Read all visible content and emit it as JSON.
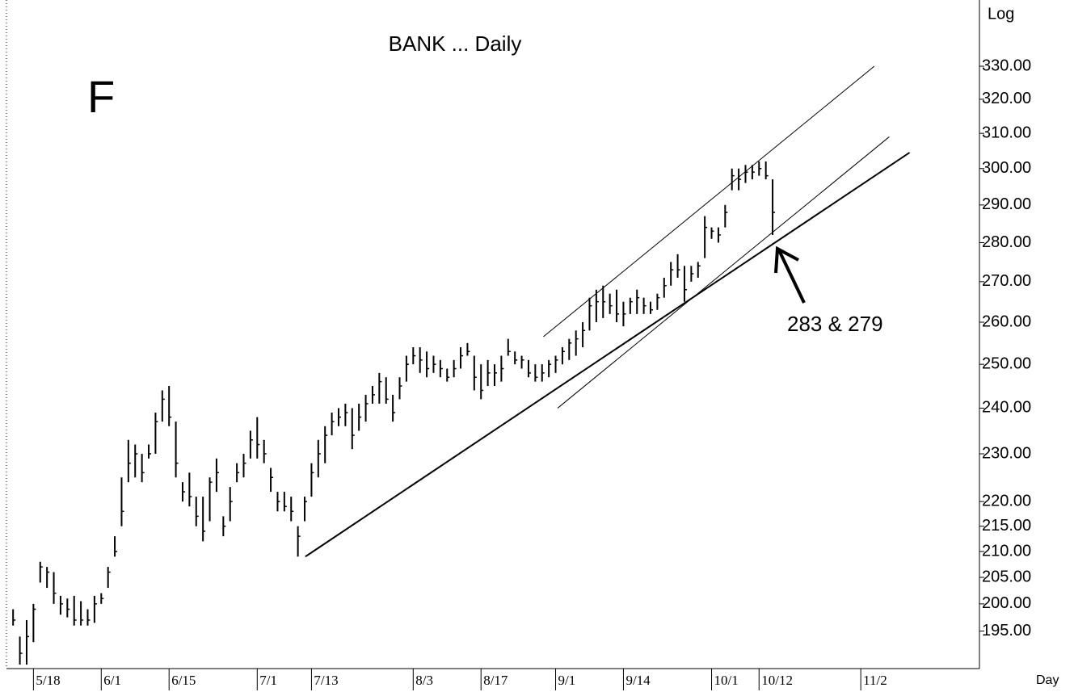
{
  "chart_data": {
    "type": "ohlc",
    "title": "BANK ... Daily",
    "annotations": [
      "F",
      "283 & 279"
    ],
    "y_axis_label": "Log",
    "x_axis_label": "Day",
    "log": true,
    "color": "#000000",
    "ylim": [
      188.3,
      351
    ],
    "yticks": [
      {
        "value": 195,
        "label": "195.00"
      },
      {
        "value": 200,
        "label": "200.00"
      },
      {
        "value": 205,
        "label": "205.00"
      },
      {
        "value": 210,
        "label": "210.00"
      },
      {
        "value": 215,
        "label": "215.00"
      },
      {
        "value": 220,
        "label": "220.00"
      },
      {
        "value": 230,
        "label": "230.00"
      },
      {
        "value": 240,
        "label": "240.00"
      },
      {
        "value": 250,
        "label": "250.00"
      },
      {
        "value": 260,
        "label": "260.00"
      },
      {
        "value": 270,
        "label": "270.00"
      },
      {
        "value": 280,
        "label": "280.00"
      },
      {
        "value": 290,
        "label": "290.00"
      },
      {
        "value": 300,
        "label": "300.00"
      },
      {
        "value": 310,
        "label": "310.00"
      },
      {
        "value": 320,
        "label": "320.00"
      },
      {
        "value": 330,
        "label": "330.00"
      }
    ],
    "categories": [
      null,
      null,
      null,
      "5/18",
      null,
      null,
      null,
      null,
      null,
      null,
      null,
      null,
      null,
      "6/1",
      null,
      null,
      null,
      null,
      null,
      null,
      null,
      null,
      null,
      "6/15",
      null,
      null,
      null,
      null,
      null,
      null,
      null,
      null,
      null,
      null,
      null,
      null,
      "7/1",
      null,
      null,
      null,
      null,
      null,
      null,
      null,
      "7/13",
      null,
      null,
      null,
      null,
      null,
      null,
      null,
      null,
      null,
      null,
      null,
      null,
      null,
      null,
      "8/3",
      null,
      null,
      null,
      null,
      null,
      null,
      null,
      null,
      null,
      "8/17",
      null,
      null,
      null,
      null,
      null,
      null,
      null,
      null,
      null,
      null,
      "9/1",
      null,
      null,
      null,
      null,
      null,
      null,
      null,
      null,
      null,
      "9/14",
      null,
      null,
      null,
      null,
      null,
      null,
      null,
      null,
      null,
      null,
      null,
      null,
      "10/1",
      null,
      null,
      null,
      null,
      null,
      null,
      "10/12",
      null,
      null,
      null,
      null,
      null,
      null,
      null,
      null,
      null,
      null,
      null,
      null,
      null,
      null,
      "11/2",
      null,
      null,
      null,
      null,
      null,
      null,
      null,
      null,
      null,
      null,
      null,
      null,
      null,
      null,
      null,
      null,
      null
    ],
    "low": [
      196,
      189,
      189,
      193,
      204,
      203,
      200,
      198,
      197.5,
      196,
      196,
      196,
      196.5,
      200,
      203,
      209,
      215,
      224,
      225,
      224,
      229,
      230,
      237,
      236,
      225,
      220,
      219,
      215,
      212,
      216,
      222,
      213,
      216,
      224,
      225,
      229,
      229,
      228,
      222,
      218,
      218,
      216,
      209,
      216,
      221,
      225,
      228,
      234,
      236,
      236,
      231,
      235,
      237,
      241,
      241,
      241,
      237,
      242,
      246,
      250,
      248,
      247,
      248,
      247,
      246,
      247,
      249,
      252,
      244,
      242,
      245,
      245,
      246,
      252,
      250,
      249,
      247,
      246,
      246,
      247,
      248,
      250,
      251,
      252,
      254,
      258,
      260,
      261,
      262,
      260,
      259,
      262,
      262,
      262,
      262,
      263,
      266,
      269,
      271,
      265,
      270,
      271,
      276,
      281,
      280,
      284,
      294,
      294,
      296,
      297,
      298,
      297,
      282,
      null,
      null,
      null,
      null,
      null,
      null,
      null,
      null,
      null,
      null,
      null,
      null,
      null,
      null,
      null,
      null,
      null,
      null,
      null,
      null,
      null,
      null,
      null,
      null,
      null,
      null,
      null,
      null,
      null,
      null
    ],
    "high": [
      199,
      194,
      197,
      200,
      208,
      207,
      206,
      201.5,
      201,
      201.5,
      200.5,
      199,
      201.5,
      202,
      207,
      213,
      225,
      233,
      232,
      230,
      232,
      239,
      244,
      245,
      237,
      224,
      226,
      221,
      221,
      225,
      229,
      217,
      223,
      228,
      230,
      235,
      238,
      233,
      227,
      222,
      222,
      221,
      215,
      221,
      228,
      233,
      236,
      239,
      240,
      241,
      240,
      241,
      243,
      245,
      248,
      247,
      243,
      247,
      252,
      254,
      254,
      253,
      252,
      251,
      249,
      251,
      254,
      255,
      252,
      250,
      251,
      250,
      252,
      256,
      253,
      252,
      251,
      250,
      250,
      251,
      252,
      254,
      256,
      258,
      260,
      266,
      268,
      269,
      267,
      268,
      265,
      266,
      268,
      266,
      265,
      267,
      271,
      275,
      277,
      274,
      274,
      275,
      287,
      284,
      284,
      290,
      300,
      300,
      301,
      301,
      302,
      302,
      297,
      null,
      null,
      null,
      null,
      null,
      null,
      null,
      null,
      null,
      null,
      null,
      null,
      null,
      null,
      null,
      null,
      null,
      null,
      null,
      null,
      null,
      null,
      null,
      null,
      null,
      null,
      null,
      null,
      null,
      null
    ],
    "close": [
      197,
      191,
      194,
      199,
      207,
      206,
      202,
      200,
      199,
      197,
      197,
      197,
      200,
      201,
      206,
      210,
      218,
      228,
      230,
      226,
      230,
      237,
      242,
      238,
      228,
      222,
      221,
      217,
      214,
      224,
      226,
      215,
      220,
      226,
      228,
      233,
      232,
      230,
      225,
      220,
      219,
      218,
      213,
      220,
      226,
      230,
      234,
      237,
      238,
      239,
      234,
      238,
      241,
      243,
      246,
      242,
      239,
      245,
      250,
      252,
      251,
      249,
      250,
      249,
      247,
      249,
      252,
      253,
      247,
      244,
      248,
      248,
      249,
      253,
      251,
      251,
      248,
      247,
      248,
      250,
      251,
      253,
      255,
      256,
      258,
      264,
      265,
      265,
      264,
      262,
      262,
      265,
      266,
      264,
      263,
      266,
      269,
      273,
      273,
      268,
      272,
      274,
      284,
      283,
      282,
      288,
      298,
      297,
      299,
      299,
      300,
      298,
      288,
      null,
      null,
      null,
      null,
      null,
      null,
      null,
      null,
      null,
      null,
      null,
      null,
      null,
      null,
      null,
      null,
      null,
      null,
      null,
      null,
      null,
      null,
      null,
      null,
      null,
      null,
      null,
      null,
      null,
      null
    ],
    "trendlines": [
      {
        "x": [
          43.1,
          132.2
        ],
        "y": [
          209,
          304.5
        ]
      },
      {
        "x": [
          78.2,
          127
        ],
        "y": [
          256.5,
          330
        ]
      },
      {
        "x": [
          80.3,
          129.2
        ],
        "y": [
          240,
          309
        ]
      }
    ]
  }
}
